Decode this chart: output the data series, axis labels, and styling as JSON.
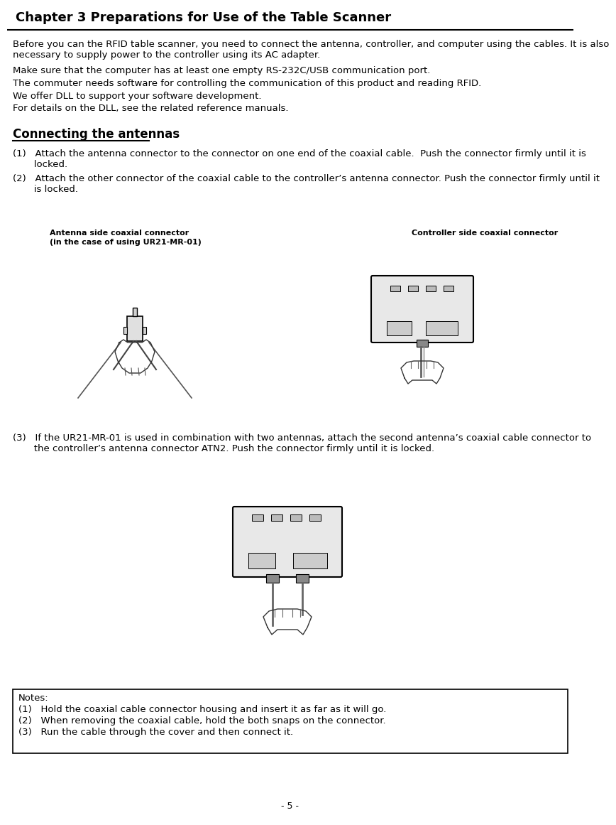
{
  "title": "Chapter 3 Preparations for Use of the Table Scanner",
  "page_number": "- 5 -",
  "bg": "#ffffff",
  "title_fontsize": 13,
  "body_fontsize": 9.5,
  "section_fontsize": 12,
  "para1_line1": "Before you can the RFID table scanner, you need to connect the antenna, controller, and computer using the cables. It is also",
  "para1_line2": "necessary to supply power to the controller using its AC adapter.",
  "para2": "Make sure that the computer has at least one empty RS-232C/USB communication port.",
  "para3": "The commuter needs software for controlling the communication of this product and reading RFID.",
  "para4": "We offer DLL to support your software development.",
  "para5": "For details on the DLL, see the related reference manuals.",
  "section": "Connecting the antennas",
  "step1_line1": "(1)   Attach the antenna connector to the connector on one end of the coaxial cable.  Push the connector firmly until it is",
  "step1_line2": "       locked.",
  "step2_line1": "(2)   Attach the other connector of the coaxial cable to the controller’s antenna connector. Push the connector firmly until it",
  "step2_line2": "       is locked.",
  "label_ant_1": "Antenna side coaxial connector",
  "label_ant_2": "(in the case of using UR21-MR-01)",
  "label_ctrl": "Controller side coaxial connector",
  "step3_line1": "(3)   If the UR21-MR-01 is used in combination with two antennas, attach the second antenna’s coaxial cable connector to",
  "step3_line2": "       the controller’s antenna connector ATN2. Push the connector firmly until it is locked.",
  "notes_title": "Notes:",
  "note1": "(1)   Hold the coaxial cable connector housing and insert it as far as it will go.",
  "note2": "(2)   When removing the coaxial cable, hold the both snaps on the connector.",
  "note3": "(3)   Run the cable through the cover and then connect it."
}
